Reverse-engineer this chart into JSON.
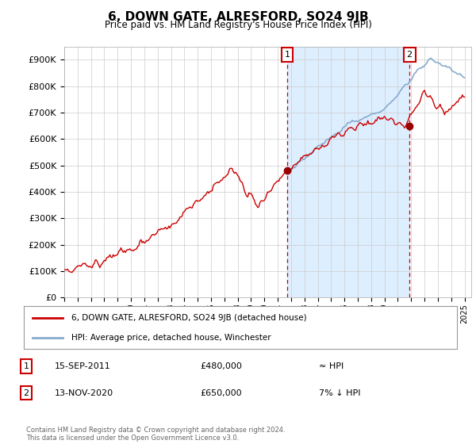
{
  "title": "6, DOWN GATE, ALRESFORD, SO24 9JB",
  "subtitle": "Price paid vs. HM Land Registry's House Price Index (HPI)",
  "ylabel_ticks": [
    "£0",
    "£100K",
    "£200K",
    "£300K",
    "£400K",
    "£500K",
    "£600K",
    "£700K",
    "£800K",
    "£900K"
  ],
  "ytick_values": [
    0,
    100000,
    200000,
    300000,
    400000,
    500000,
    600000,
    700000,
    800000,
    900000
  ],
  "ylim": [
    0,
    950000
  ],
  "xlim_start": 1995,
  "xlim_end": 2025.5,
  "legend_line1": "6, DOWN GATE, ALRESFORD, SO24 9JB (detached house)",
  "legend_line2": "HPI: Average price, detached house, Winchester",
  "annotation1_label": "1",
  "annotation1_date": "15-SEP-2011",
  "annotation1_price": "£480,000",
  "annotation1_hpi": "≈ HPI",
  "annotation2_label": "2",
  "annotation2_date": "13-NOV-2020",
  "annotation2_price": "£650,000",
  "annotation2_hpi": "7% ↓ HPI",
  "footer": "Contains HM Land Registry data © Crown copyright and database right 2024.\nThis data is licensed under the Open Government Licence v3.0.",
  "line_color_red": "#cc0000",
  "line_color_blue": "#88aacc",
  "shading_color": "#ddeeff",
  "annotation_color": "#cc0000",
  "background_color": "#ffffff",
  "grid_color": "#cccccc",
  "sale1_year": 2011.71,
  "sale1_price": 480000,
  "sale2_year": 2020.87,
  "sale2_price": 650000
}
